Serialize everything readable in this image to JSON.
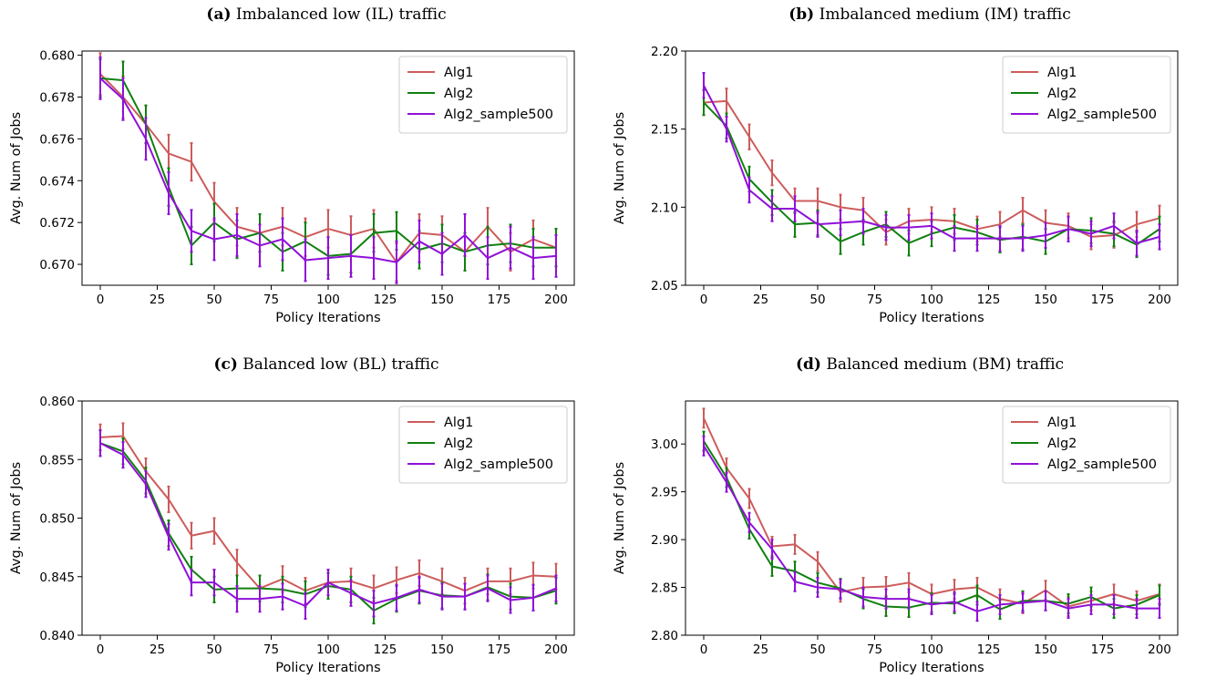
{
  "colors": {
    "Alg1": "#cd5c5c",
    "Alg2": "#108010",
    "Alg2_sample500": "#9010d8"
  },
  "chart_data": [
    {
      "type": "line",
      "label": "(a)",
      "title": "Imbalanced low (IL) traffic",
      "xlabel": "Policy Iterations",
      "ylabel": "Avg. Num of Jobs",
      "xlim": [
        -8,
        208
      ],
      "ylim": [
        0.669,
        0.6802
      ],
      "xticks": [
        0,
        25,
        50,
        75,
        100,
        125,
        150,
        175,
        200
      ],
      "yticks": [
        0.67,
        0.672,
        0.674,
        0.676,
        0.678,
        0.68
      ],
      "ytick_labels": [
        "0.670",
        "0.672",
        "0.674",
        "0.676",
        "0.678",
        "0.680"
      ],
      "legend": "top-right",
      "x": [
        0,
        10,
        20,
        30,
        40,
        50,
        60,
        70,
        80,
        90,
        100,
        110,
        120,
        130,
        140,
        150,
        160,
        170,
        180,
        190,
        200
      ],
      "series": [
        {
          "name": "Alg1",
          "values": [
            0.6791,
            0.678,
            0.6767,
            0.6753,
            0.6749,
            0.673,
            0.6718,
            0.6715,
            0.6718,
            0.6713,
            0.6717,
            0.6714,
            0.6717,
            0.6701,
            0.6715,
            0.6714,
            0.6706,
            0.6718,
            0.6706,
            0.6712,
            0.6708
          ],
          "errors": [
            0.001,
            0.001,
            0.0009,
            0.0009,
            0.0009,
            0.0009,
            0.0009,
            0.0009,
            0.0009,
            0.0009,
            0.0009,
            0.0009,
            0.0009,
            0.0009,
            0.0009,
            0.0009,
            0.0009,
            0.0009,
            0.0009,
            0.0009,
            0.0009
          ]
        },
        {
          "name": "Alg2",
          "values": [
            0.6789,
            0.6788,
            0.6767,
            0.6737,
            0.6709,
            0.672,
            0.6712,
            0.6715,
            0.6706,
            0.6711,
            0.6704,
            0.6705,
            0.6715,
            0.6716,
            0.6707,
            0.671,
            0.6706,
            0.6709,
            0.671,
            0.6708,
            0.6708
          ],
          "errors": [
            0.0009,
            0.0009,
            0.0009,
            0.0009,
            0.0009,
            0.0009,
            0.0009,
            0.0009,
            0.0009,
            0.0009,
            0.0009,
            0.0009,
            0.0009,
            0.0009,
            0.0009,
            0.0009,
            0.0009,
            0.0009,
            0.0009,
            0.0009,
            0.0009
          ]
        },
        {
          "name": "Alg2_sample500",
          "values": [
            0.6789,
            0.6779,
            0.676,
            0.6734,
            0.6716,
            0.6712,
            0.6714,
            0.6709,
            0.6712,
            0.6702,
            0.6703,
            0.6704,
            0.6703,
            0.6701,
            0.6711,
            0.6705,
            0.6714,
            0.6703,
            0.6708,
            0.6703,
            0.6704
          ],
          "errors": [
            0.001,
            0.001,
            0.001,
            0.001,
            0.001,
            0.001,
            0.001,
            0.001,
            0.001,
            0.001,
            0.001,
            0.001,
            0.001,
            0.001,
            0.001,
            0.001,
            0.001,
            0.001,
            0.001,
            0.001,
            0.001
          ]
        }
      ]
    },
    {
      "type": "line",
      "label": "(b)",
      "title": "Imbalanced medium (IM) traffic",
      "xlabel": "Policy Iterations",
      "ylabel": "Avg. Num of Jobs",
      "xlim": [
        -8,
        208
      ],
      "ylim": [
        2.05,
        2.2
      ],
      "xticks": [
        0,
        25,
        50,
        75,
        100,
        125,
        150,
        175,
        200
      ],
      "yticks": [
        2.05,
        2.1,
        2.15,
        2.2
      ],
      "ytick_labels": [
        "2.05",
        "2.10",
        "2.15",
        "2.20"
      ],
      "legend": "top-right",
      "x": [
        0,
        10,
        20,
        30,
        40,
        50,
        60,
        70,
        80,
        90,
        100,
        110,
        120,
        130,
        140,
        150,
        160,
        170,
        180,
        190,
        200
      ],
      "series": [
        {
          "name": "Alg1",
          "values": [
            2.167,
            2.168,
            2.145,
            2.122,
            2.104,
            2.104,
            2.1,
            2.098,
            2.084,
            2.091,
            2.092,
            2.091,
            2.086,
            2.089,
            2.098,
            2.09,
            2.088,
            2.081,
            2.082,
            2.089,
            2.093
          ],
          "errors": [
            0.008,
            0.008,
            0.008,
            0.008,
            0.008,
            0.008,
            0.008,
            0.008,
            0.008,
            0.008,
            0.008,
            0.008,
            0.008,
            0.008,
            0.008,
            0.008,
            0.008,
            0.008,
            0.008,
            0.008,
            0.008
          ]
        },
        {
          "name": "Alg2",
          "values": [
            2.167,
            2.152,
            2.118,
            2.103,
            2.089,
            2.09,
            2.078,
            2.084,
            2.089,
            2.077,
            2.083,
            2.087,
            2.084,
            2.079,
            2.081,
            2.078,
            2.086,
            2.085,
            2.083,
            2.076,
            2.086
          ],
          "errors": [
            0.008,
            0.008,
            0.008,
            0.008,
            0.008,
            0.008,
            0.008,
            0.008,
            0.008,
            0.008,
            0.008,
            0.008,
            0.008,
            0.008,
            0.008,
            0.008,
            0.008,
            0.008,
            0.008,
            0.008,
            0.008
          ]
        },
        {
          "name": "Alg2_sample500",
          "values": [
            2.178,
            2.15,
            2.111,
            2.099,
            2.099,
            2.089,
            2.09,
            2.091,
            2.087,
            2.087,
            2.088,
            2.08,
            2.08,
            2.08,
            2.08,
            2.082,
            2.086,
            2.083,
            2.088,
            2.077,
            2.081
          ],
          "errors": [
            0.008,
            0.008,
            0.008,
            0.008,
            0.008,
            0.008,
            0.008,
            0.008,
            0.008,
            0.008,
            0.008,
            0.008,
            0.008,
            0.008,
            0.008,
            0.008,
            0.008,
            0.008,
            0.008,
            0.008,
            0.008
          ]
        }
      ]
    },
    {
      "type": "line",
      "label": "(c)",
      "title": "Balanced low (BL) traffic",
      "xlabel": "Policy Iterations",
      "ylabel": "Avg. Num of Jobs",
      "xlim": [
        -8,
        208
      ],
      "ylim": [
        0.84,
        0.86
      ],
      "xticks": [
        0,
        25,
        50,
        75,
        100,
        125,
        150,
        175,
        200
      ],
      "yticks": [
        0.84,
        0.845,
        0.85,
        0.855,
        0.86
      ],
      "ytick_labels": [
        "0.840",
        "0.845",
        "0.850",
        "0.855",
        "0.860"
      ],
      "legend": "top-right",
      "x": [
        0,
        10,
        20,
        30,
        40,
        50,
        60,
        70,
        80,
        90,
        100,
        110,
        120,
        130,
        140,
        150,
        160,
        170,
        180,
        190,
        200
      ],
      "series": [
        {
          "name": "Alg1",
          "values": [
            0.8569,
            0.857,
            0.854,
            0.8516,
            0.8485,
            0.8489,
            0.8462,
            0.844,
            0.8448,
            0.8438,
            0.8445,
            0.8446,
            0.844,
            0.8447,
            0.8453,
            0.8446,
            0.8438,
            0.8446,
            0.8446,
            0.8451,
            0.845
          ],
          "errors": [
            0.0011,
            0.0011,
            0.0011,
            0.0011,
            0.0011,
            0.0011,
            0.0011,
            0.0011,
            0.0011,
            0.0011,
            0.0011,
            0.0011,
            0.0011,
            0.0011,
            0.0011,
            0.0011,
            0.0011,
            0.0011,
            0.0011,
            0.0011,
            0.0011
          ]
        },
        {
          "name": "Alg2",
          "values": [
            0.8564,
            0.8557,
            0.8532,
            0.8487,
            0.8456,
            0.8439,
            0.844,
            0.844,
            0.8439,
            0.8435,
            0.8442,
            0.8439,
            0.8421,
            0.8431,
            0.8438,
            0.8434,
            0.8433,
            0.8441,
            0.8433,
            0.8432,
            0.8438
          ],
          "errors": [
            0.0011,
            0.0011,
            0.0011,
            0.0011,
            0.0011,
            0.0011,
            0.0011,
            0.0011,
            0.0011,
            0.0011,
            0.0011,
            0.0011,
            0.0011,
            0.0011,
            0.0011,
            0.0011,
            0.0011,
            0.0011,
            0.0011,
            0.0011,
            0.0011
          ]
        },
        {
          "name": "Alg2_sample500",
          "values": [
            0.8564,
            0.8554,
            0.8529,
            0.8484,
            0.8445,
            0.8445,
            0.8431,
            0.8431,
            0.8433,
            0.8425,
            0.8445,
            0.8436,
            0.8427,
            0.8432,
            0.8439,
            0.8433,
            0.8433,
            0.844,
            0.843,
            0.8432,
            0.844
          ],
          "errors": [
            0.0011,
            0.0011,
            0.0011,
            0.0011,
            0.0011,
            0.0011,
            0.0011,
            0.0011,
            0.0011,
            0.0011,
            0.0011,
            0.0011,
            0.0011,
            0.0011,
            0.0011,
            0.0011,
            0.0011,
            0.0011,
            0.0011,
            0.0011,
            0.0011
          ]
        }
      ]
    },
    {
      "type": "line",
      "label": "(d)",
      "title": "Balanced medium (BM) traffic",
      "xlabel": "Policy Iterations",
      "ylabel": "Avg. Num of Jobs",
      "xlim": [
        -8,
        208
      ],
      "ylim": [
        2.8,
        3.045
      ],
      "xticks": [
        0,
        25,
        50,
        75,
        100,
        125,
        150,
        175,
        200
      ],
      "yticks": [
        2.8,
        2.85,
        2.9,
        2.95,
        3.0
      ],
      "ytick_labels": [
        "2.80",
        "2.85",
        "2.90",
        "2.95",
        "3.00"
      ],
      "legend": "top-right",
      "x": [
        0,
        10,
        20,
        30,
        40,
        50,
        60,
        70,
        80,
        90,
        100,
        110,
        120,
        130,
        140,
        150,
        160,
        170,
        180,
        190,
        200
      ],
      "series": [
        {
          "name": "Alg1",
          "values": [
            3.027,
            2.975,
            2.943,
            2.893,
            2.895,
            2.877,
            2.845,
            2.85,
            2.851,
            2.855,
            2.843,
            2.848,
            2.85,
            2.838,
            2.833,
            2.847,
            2.83,
            2.836,
            2.843,
            2.836,
            2.843
          ],
          "errors": [
            0.01,
            0.01,
            0.01,
            0.01,
            0.01,
            0.01,
            0.01,
            0.01,
            0.01,
            0.01,
            0.01,
            0.01,
            0.01,
            0.01,
            0.01,
            0.01,
            0.01,
            0.01,
            0.01,
            0.01,
            0.01
          ]
        },
        {
          "name": "Alg2",
          "values": [
            3.003,
            2.965,
            2.911,
            2.872,
            2.867,
            2.855,
            2.849,
            2.838,
            2.83,
            2.829,
            2.834,
            2.833,
            2.842,
            2.827,
            2.836,
            2.836,
            2.833,
            2.84,
            2.828,
            2.832,
            2.842
          ],
          "errors": [
            0.01,
            0.01,
            0.01,
            0.01,
            0.01,
            0.01,
            0.01,
            0.01,
            0.01,
            0.01,
            0.01,
            0.01,
            0.01,
            0.01,
            0.01,
            0.01,
            0.01,
            0.01,
            0.01,
            0.01,
            0.01
          ]
        },
        {
          "name": "Alg2_sample500",
          "values": [
            2.998,
            2.96,
            2.918,
            2.89,
            2.856,
            2.85,
            2.848,
            2.84,
            2.838,
            2.838,
            2.832,
            2.835,
            2.825,
            2.832,
            2.834,
            2.836,
            2.828,
            2.832,
            2.832,
            2.828,
            2.828
          ],
          "errors": [
            0.01,
            0.01,
            0.01,
            0.01,
            0.01,
            0.01,
            0.01,
            0.01,
            0.01,
            0.01,
            0.01,
            0.01,
            0.01,
            0.01,
            0.01,
            0.01,
            0.01,
            0.01,
            0.01,
            0.01,
            0.01
          ]
        }
      ]
    }
  ]
}
